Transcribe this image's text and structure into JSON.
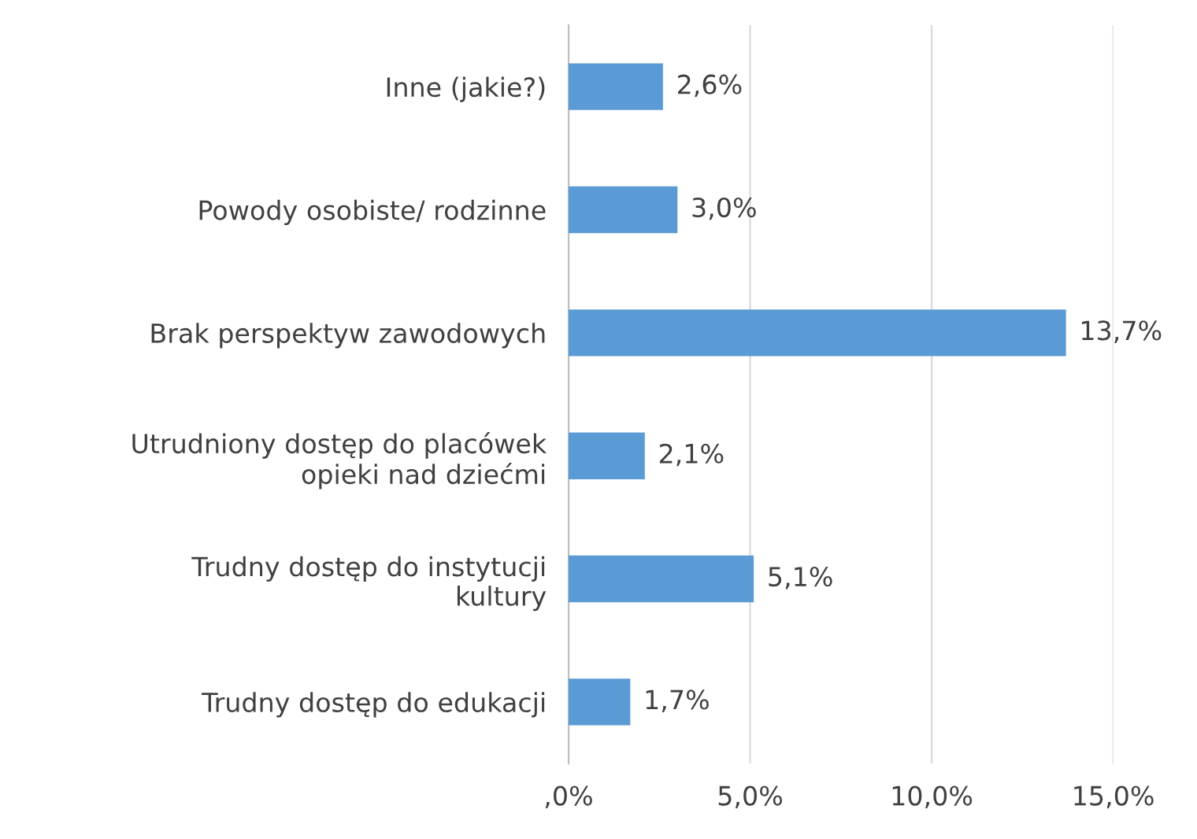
{
  "chart_data": {
    "type": "bar",
    "orientation": "horizontal",
    "categories": [
      "Inne (jakie?)",
      "Powody osobiste/ rodzinne",
      "Brak perspektyw zawodowych",
      "Utrudniony dostęp do placówek\nopieki nad dziećmi",
      "Trudny dostęp do instytucji\nkultury",
      "Trudny dostęp do edukacji"
    ],
    "values": [
      2.6,
      3.0,
      13.7,
      2.1,
      5.1,
      1.7
    ],
    "value_labels": [
      "2,6%",
      "3,0%",
      "13,7%",
      "2,1%",
      "5,1%",
      "1,7%"
    ],
    "color": "#5b9bd5",
    "xlim": [
      0,
      15
    ],
    "xticks": [
      {
        "value": 0,
        "label": ",0%"
      },
      {
        "value": 5,
        "label": "5,0%"
      },
      {
        "value": 10,
        "label": "10,0%"
      },
      {
        "value": 15,
        "label": "15,0%"
      }
    ],
    "grid": "x",
    "legend": false
  }
}
